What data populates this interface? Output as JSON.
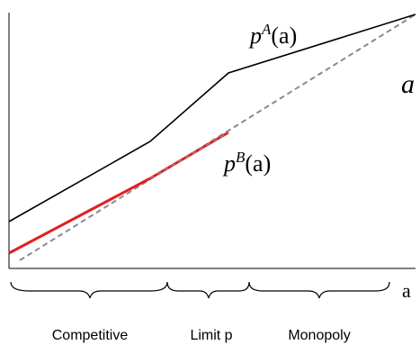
{
  "diagram": {
    "curves": {
      "pA": {
        "base": "p",
        "sup": "A",
        "arg": "(a)",
        "color": "#000000"
      },
      "pB": {
        "base": "p",
        "sup": "B",
        "arg": "(a)",
        "color": "#000000",
        "highlight_color": "#e02020"
      }
    },
    "diagonal": {
      "label": "a",
      "color": "#8a8a8a"
    },
    "x_axis": {
      "label": "a"
    },
    "regions": [
      "Competitive",
      "Limit p",
      "Monopoly"
    ]
  }
}
